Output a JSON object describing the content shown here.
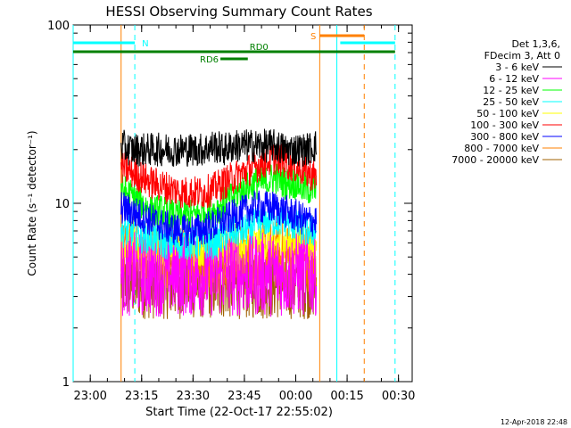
{
  "chart_data": {
    "type": "line",
    "title": "HESSI Observing Summary Count Rates",
    "xlabel": "Start Time (22-Oct-17 22:55:02)",
    "ylabel": "Count Rate (s⁻¹ detector⁻¹)",
    "yscale": "log",
    "ylim": [
      1,
      100
    ],
    "xlim": [
      "22:55",
      "00:34"
    ],
    "x_ticks": [
      "23:00",
      "23:15",
      "23:30",
      "23:45",
      "00:00",
      "00:15",
      "00:30"
    ],
    "y_ticks": [
      "1",
      "10",
      "100"
    ],
    "data_window": {
      "start": "23:09",
      "end": "00:06"
    },
    "legend_header": [
      "Det 1,3,6,",
      "FDecim 3, Att 0"
    ],
    "series": [
      {
        "name": "3 - 6 keV",
        "color": "#000000",
        "values": [
          21,
          20,
          20,
          20,
          20,
          20,
          20,
          20,
          20,
          21,
          20,
          21,
          21,
          21,
          21,
          21,
          20,
          20,
          20,
          21
        ]
      },
      {
        "name": "6 - 12 keV",
        "color": "#ff00ff",
        "values": [
          4,
          4,
          4,
          4,
          4,
          4,
          4,
          4,
          4,
          4,
          4,
          4,
          4,
          4,
          4,
          4,
          4,
          4,
          4,
          4
        ]
      },
      {
        "name": "12 - 25 keV",
        "color": "#00ff00",
        "values": [
          12,
          11,
          10,
          9,
          9,
          8.5,
          8.5,
          8.5,
          9,
          9,
          10,
          11,
          12,
          13,
          13,
          14,
          13,
          13,
          12,
          12
        ]
      },
      {
        "name": "25 - 50 keV",
        "color": "#00ffff",
        "values": [
          7,
          7,
          6.5,
          6.5,
          6,
          6,
          6,
          6,
          6,
          6,
          6.5,
          7,
          7,
          7.5,
          8,
          8,
          8,
          7.5,
          7,
          7
        ]
      },
      {
        "name": "50 - 100 keV",
        "color": "#ffff00",
        "values": [
          6,
          6,
          5.5,
          5.5,
          5.5,
          5.5,
          5.5,
          5.5,
          5.5,
          5.5,
          5.5,
          5.5,
          5.5,
          6,
          6,
          6,
          6,
          6,
          6,
          6
        ]
      },
      {
        "name": "100 - 300 keV",
        "color": "#ff0000",
        "values": [
          16,
          15,
          14,
          13,
          12.5,
          12,
          11.5,
          11.5,
          11.5,
          12,
          13,
          14,
          15,
          16,
          17,
          18,
          17,
          16,
          15,
          14
        ]
      },
      {
        "name": "300 - 800 keV",
        "color": "#0000ff",
        "values": [
          9.5,
          9,
          8.5,
          8,
          7.5,
          7.2,
          7,
          7,
          7.2,
          7.5,
          8,
          8.5,
          9,
          9.5,
          9.5,
          9.5,
          9,
          8.5,
          8,
          8
        ]
      },
      {
        "name": "800 - 7000 keV",
        "color": "#ff8000",
        "values": [
          5.5,
          5.5,
          5.2,
          5,
          5,
          5,
          4.8,
          4.8,
          4.8,
          4.8,
          5,
          5,
          5,
          5,
          5.2,
          5.2,
          5,
          5,
          5,
          5
        ]
      },
      {
        "name": "7000 - 20000 keV",
        "color": "#a06000",
        "values": [
          3.5,
          3.5,
          3.5,
          3.5,
          3.5,
          3.5,
          3.5,
          3.5,
          3.5,
          3.5,
          3.5,
          3.5,
          3.5,
          3.5,
          3.5,
          3.5,
          3.5,
          3.5,
          3.5,
          3.5
        ]
      }
    ],
    "flag_bars": [
      {
        "label": "N",
        "color": "#00ffff",
        "segments": [
          [
            "22:55",
            "23:13"
          ],
          [
            "00:13",
            "00:29"
          ]
        ]
      },
      {
        "label": "S",
        "color": "#ff8000",
        "segments": [
          [
            "00:07",
            "00:20"
          ]
        ]
      },
      {
        "label": "RD0",
        "color": "#008000",
        "segments": [
          [
            "22:55",
            "00:29"
          ]
        ]
      },
      {
        "label": "RD6",
        "color": "#008000",
        "segments": [
          [
            "23:38",
            "23:46"
          ]
        ]
      }
    ],
    "vertical_markers": [
      {
        "time": "22:55",
        "color": "#00ffff",
        "style": "solid"
      },
      {
        "time": "23:09",
        "color": "#ff8000",
        "style": "solid"
      },
      {
        "time": "23:13",
        "color": "#00ffff",
        "style": "dashed"
      },
      {
        "time": "00:07",
        "color": "#ff8000",
        "style": "solid"
      },
      {
        "time": "00:12",
        "color": "#00ffff",
        "style": "solid"
      },
      {
        "time": "00:20",
        "color": "#ff8000",
        "style": "dashed"
      },
      {
        "time": "00:29",
        "color": "#00ffff",
        "style": "dashed"
      }
    ],
    "grid": false,
    "legend_position": "right",
    "footer": "12-Apr-2018 22:48"
  }
}
